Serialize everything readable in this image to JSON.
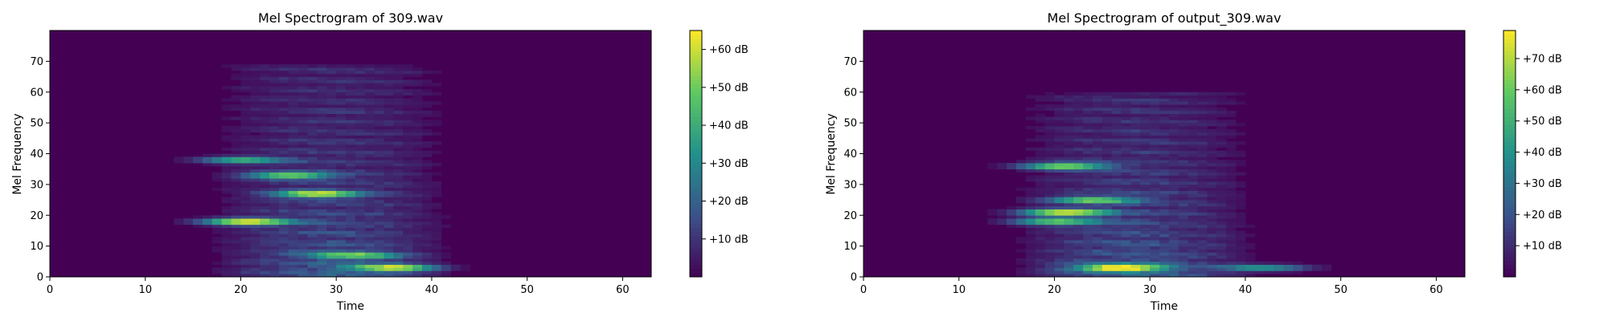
{
  "chart_data": [
    {
      "type": "heatmap",
      "title": "Mel Spectrogram of 309.wav",
      "xlabel": "Time",
      "ylabel": "Mel Frequency",
      "xlim": [
        0,
        63
      ],
      "ylim": [
        0,
        80
      ],
      "x_ticks": [
        "0",
        "10",
        "20",
        "30",
        "40",
        "50",
        "60"
      ],
      "y_ticks": [
        "0",
        "10",
        "20",
        "30",
        "40",
        "50",
        "60",
        "70"
      ],
      "colorbar": {
        "max_db": 65,
        "ticks": [
          "+10 dB",
          "+20 dB",
          "+30 dB",
          "+40 dB",
          "+50 dB",
          "+60 dB"
        ]
      },
      "colormap": [
        "#440154",
        "#3b528b",
        "#21918c",
        "#5ec962",
        "#fde725"
      ],
      "energy_region": {
        "time_range": [
          16,
          47
        ],
        "mel_range": [
          0,
          69
        ]
      },
      "hotspots": [
        {
          "t": 20.5,
          "mel": 18,
          "db": 65
        },
        {
          "t": 28,
          "mel": 27,
          "db": 55
        },
        {
          "t": 25,
          "mel": 33,
          "db": 48
        },
        {
          "t": 36,
          "mel": 3,
          "db": 55
        },
        {
          "t": 32,
          "mel": 7,
          "db": 40
        },
        {
          "t": 20,
          "mel": 38,
          "db": 40
        }
      ]
    },
    {
      "type": "heatmap",
      "title": "Mel Spectrogram of output_309.wav",
      "xlabel": "Time",
      "ylabel": "Mel Frequency",
      "xlim": [
        0,
        63
      ],
      "ylim": [
        0,
        80
      ],
      "x_ticks": [
        "0",
        "10",
        "20",
        "30",
        "40",
        "50",
        "60"
      ],
      "y_ticks": [
        "0",
        "10",
        "20",
        "30",
        "40",
        "50",
        "60",
        "70"
      ],
      "colorbar": {
        "max_db": 79,
        "ticks": [
          "+10 dB",
          "+20 dB",
          "+30 dB",
          "+40 dB",
          "+50 dB",
          "+60 dB",
          "+70 dB"
        ]
      },
      "colormap": [
        "#440154",
        "#3b528b",
        "#21918c",
        "#5ec962",
        "#fde725"
      ],
      "energy_region": {
        "time_range": [
          15,
          46
        ],
        "mel_range": [
          0,
          60
        ]
      },
      "hotspots": [
        {
          "t": 21,
          "mel": 21,
          "db": 75
        },
        {
          "t": 21,
          "mel": 36,
          "db": 65
        },
        {
          "t": 27,
          "mel": 3,
          "db": 78
        },
        {
          "t": 24,
          "mel": 25,
          "db": 55
        },
        {
          "t": 20,
          "mel": 18,
          "db": 55
        },
        {
          "t": 42,
          "mel": 3,
          "db": 45
        }
      ]
    }
  ]
}
